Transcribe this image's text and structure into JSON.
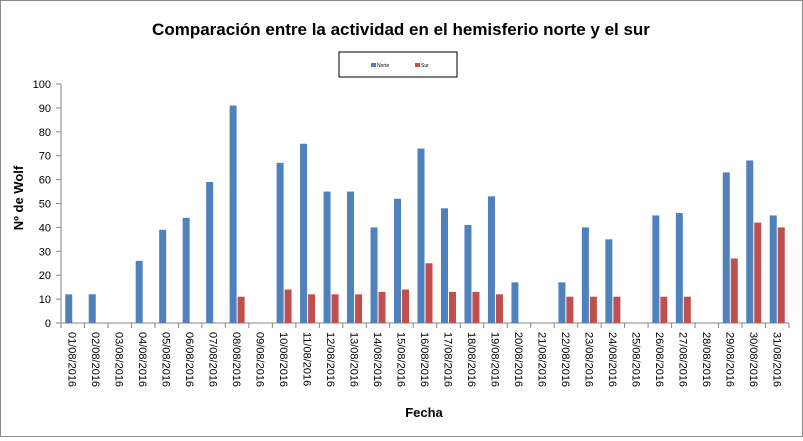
{
  "chart_data": {
    "type": "bar",
    "title": "Comparación entre la actividad en el hemisferio norte y el sur",
    "xlabel": "Fecha",
    "ylabel": "Nº de Wolf",
    "ylim": [
      0,
      100
    ],
    "yticks": [
      0,
      10,
      20,
      30,
      40,
      50,
      60,
      70,
      80,
      90,
      100
    ],
    "grid": false,
    "legend_position": "top-center",
    "categories": [
      "01/08/2016",
      "02/08/2016",
      "03/08/2016",
      "04/08/2016",
      "05/08/2016",
      "06/08/2016",
      "07/08/2016",
      "08/08/2016",
      "09/08/2016",
      "10/08/2016",
      "11/08/2016",
      "12/08/2016",
      "13/08/2016",
      "14/08/2016",
      "15/08/2016",
      "16/08/2016",
      "17/08/2016",
      "18/08/2016",
      "19/08/2016",
      "20/08/2016",
      "21/08/2016",
      "22/08/2016",
      "23/08/2016",
      "24/08/2016",
      "25/08/2016",
      "26/08/2016",
      "27/08/2016",
      "28/08/2016",
      "29/08/2016",
      "30/08/2016",
      "31/08/2016"
    ],
    "series": [
      {
        "name": "Norte",
        "color": "#4F81BD",
        "values": [
          12,
          12,
          0,
          26,
          39,
          44,
          59,
          91,
          0,
          67,
          75,
          55,
          55,
          40,
          52,
          73,
          48,
          41,
          53,
          17,
          0,
          17,
          40,
          35,
          0,
          45,
          46,
          0,
          63,
          68,
          45
        ]
      },
      {
        "name": "Sur",
        "color": "#C0504D",
        "values": [
          0,
          0,
          0,
          0,
          0,
          0,
          0,
          11,
          0,
          14,
          12,
          12,
          12,
          13,
          14,
          25,
          13,
          13,
          12,
          0,
          0,
          11,
          11,
          11,
          0,
          11,
          11,
          0,
          27,
          42,
          40
        ]
      }
    ]
  }
}
